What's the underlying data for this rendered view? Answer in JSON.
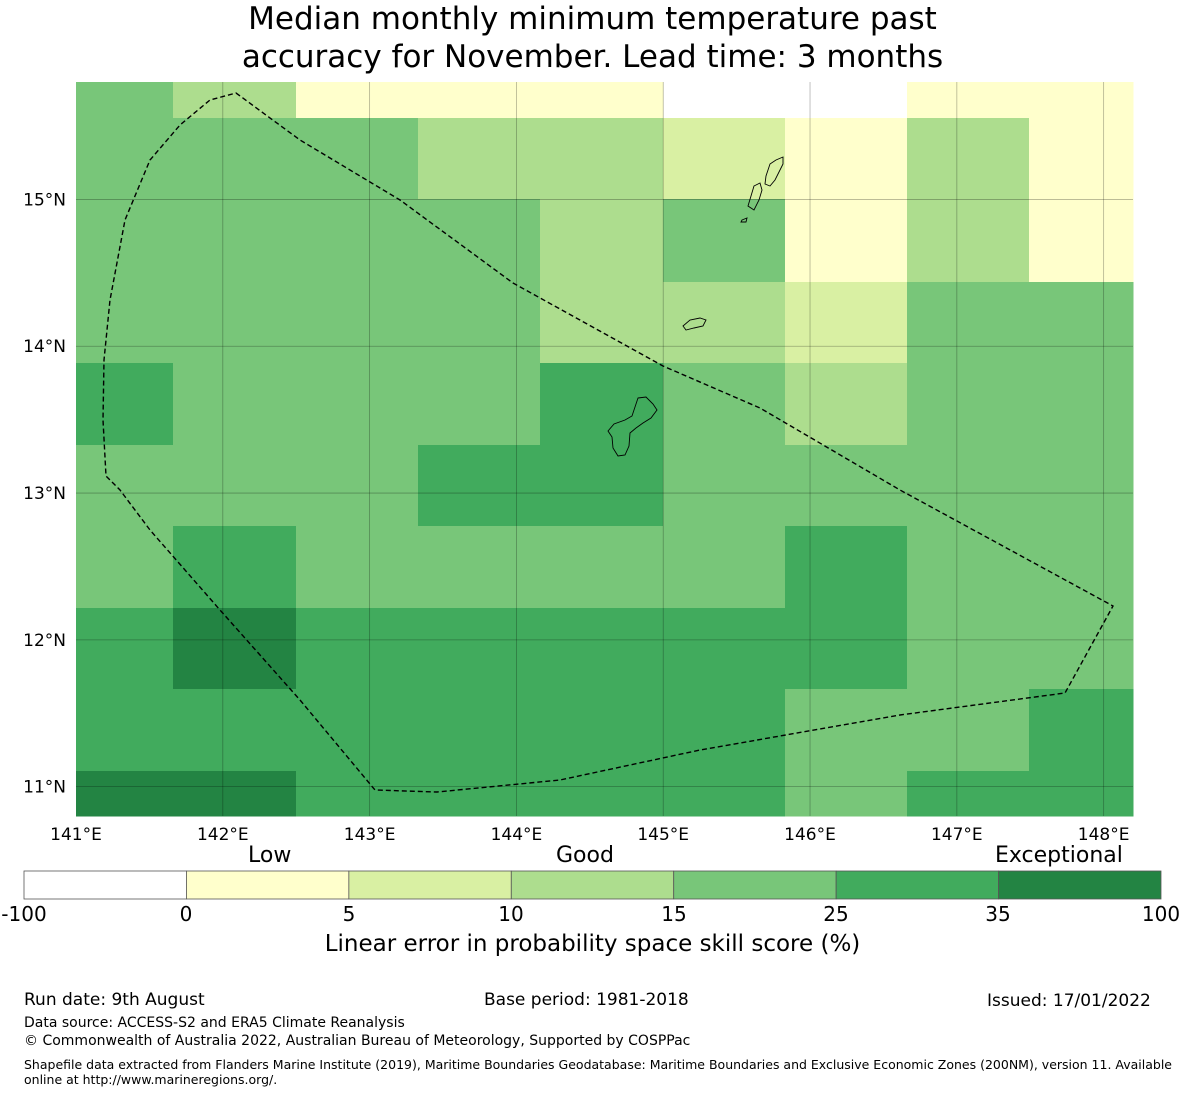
{
  "title_line1": "Median monthly minimum temperature past",
  "title_line2": "accuracy for November. Lead time: 3 months",
  "map": {
    "lon_range": [
      141.0,
      148.2
    ],
    "lat_range": [
      10.8,
      15.8
    ],
    "lon_ticks": [
      141,
      142,
      143,
      144,
      145,
      146,
      147,
      148
    ],
    "lon_tick_labels": [
      "141°E",
      "142°E",
      "143°E",
      "144°E",
      "145°E",
      "146°E",
      "147°E",
      "148°E"
    ],
    "lat_ticks": [
      11,
      12,
      13,
      14,
      15
    ],
    "lat_tick_labels": [
      "11°N",
      "12°N",
      "13°N",
      "14°N",
      "15°N"
    ],
    "grid_on": true,
    "boundary": "dashed maritime boundary (EEZ)",
    "colors": {
      "c0": "#ffffcc",
      "c1": "#d9f0a3",
      "c2": "#addd8e",
      "c3": "#78c679",
      "c4": "#41ab5d",
      "c5": "#238443"
    }
  },
  "colorbar": {
    "category_labels": [
      "Low",
      "Good",
      "Exceptional"
    ],
    "ticks": [
      "-100",
      "0",
      "5",
      "10",
      "15",
      "25",
      "35",
      "100"
    ],
    "colors": [
      "#ffffff",
      "#ffffcc",
      "#d9f0a3",
      "#addd8e",
      "#78c679",
      "#41ab5d",
      "#238443"
    ],
    "title": "Linear error in probability space skill score (%)"
  },
  "footer": {
    "run_date": "Run date: 9th August",
    "base_period": "Base period: 1981-2018",
    "issued": "Issued: 17/01/2022",
    "data_source": "Data source: ACCESS-S2 and ERA5 Climate Reanalysis",
    "copyright": "© Commonwealth of Australia 2022, Australian Bureau of Meteorology, Supported by COSPPac",
    "shapefile": "Shapefile data extracted from Flanders Marine Institute (2019), Maritime Boundaries Geodatabase: Maritime Boundaries and Exclusive Economic Zones (200NM), version 11. Available online at http://www.marineregions.org/."
  }
}
